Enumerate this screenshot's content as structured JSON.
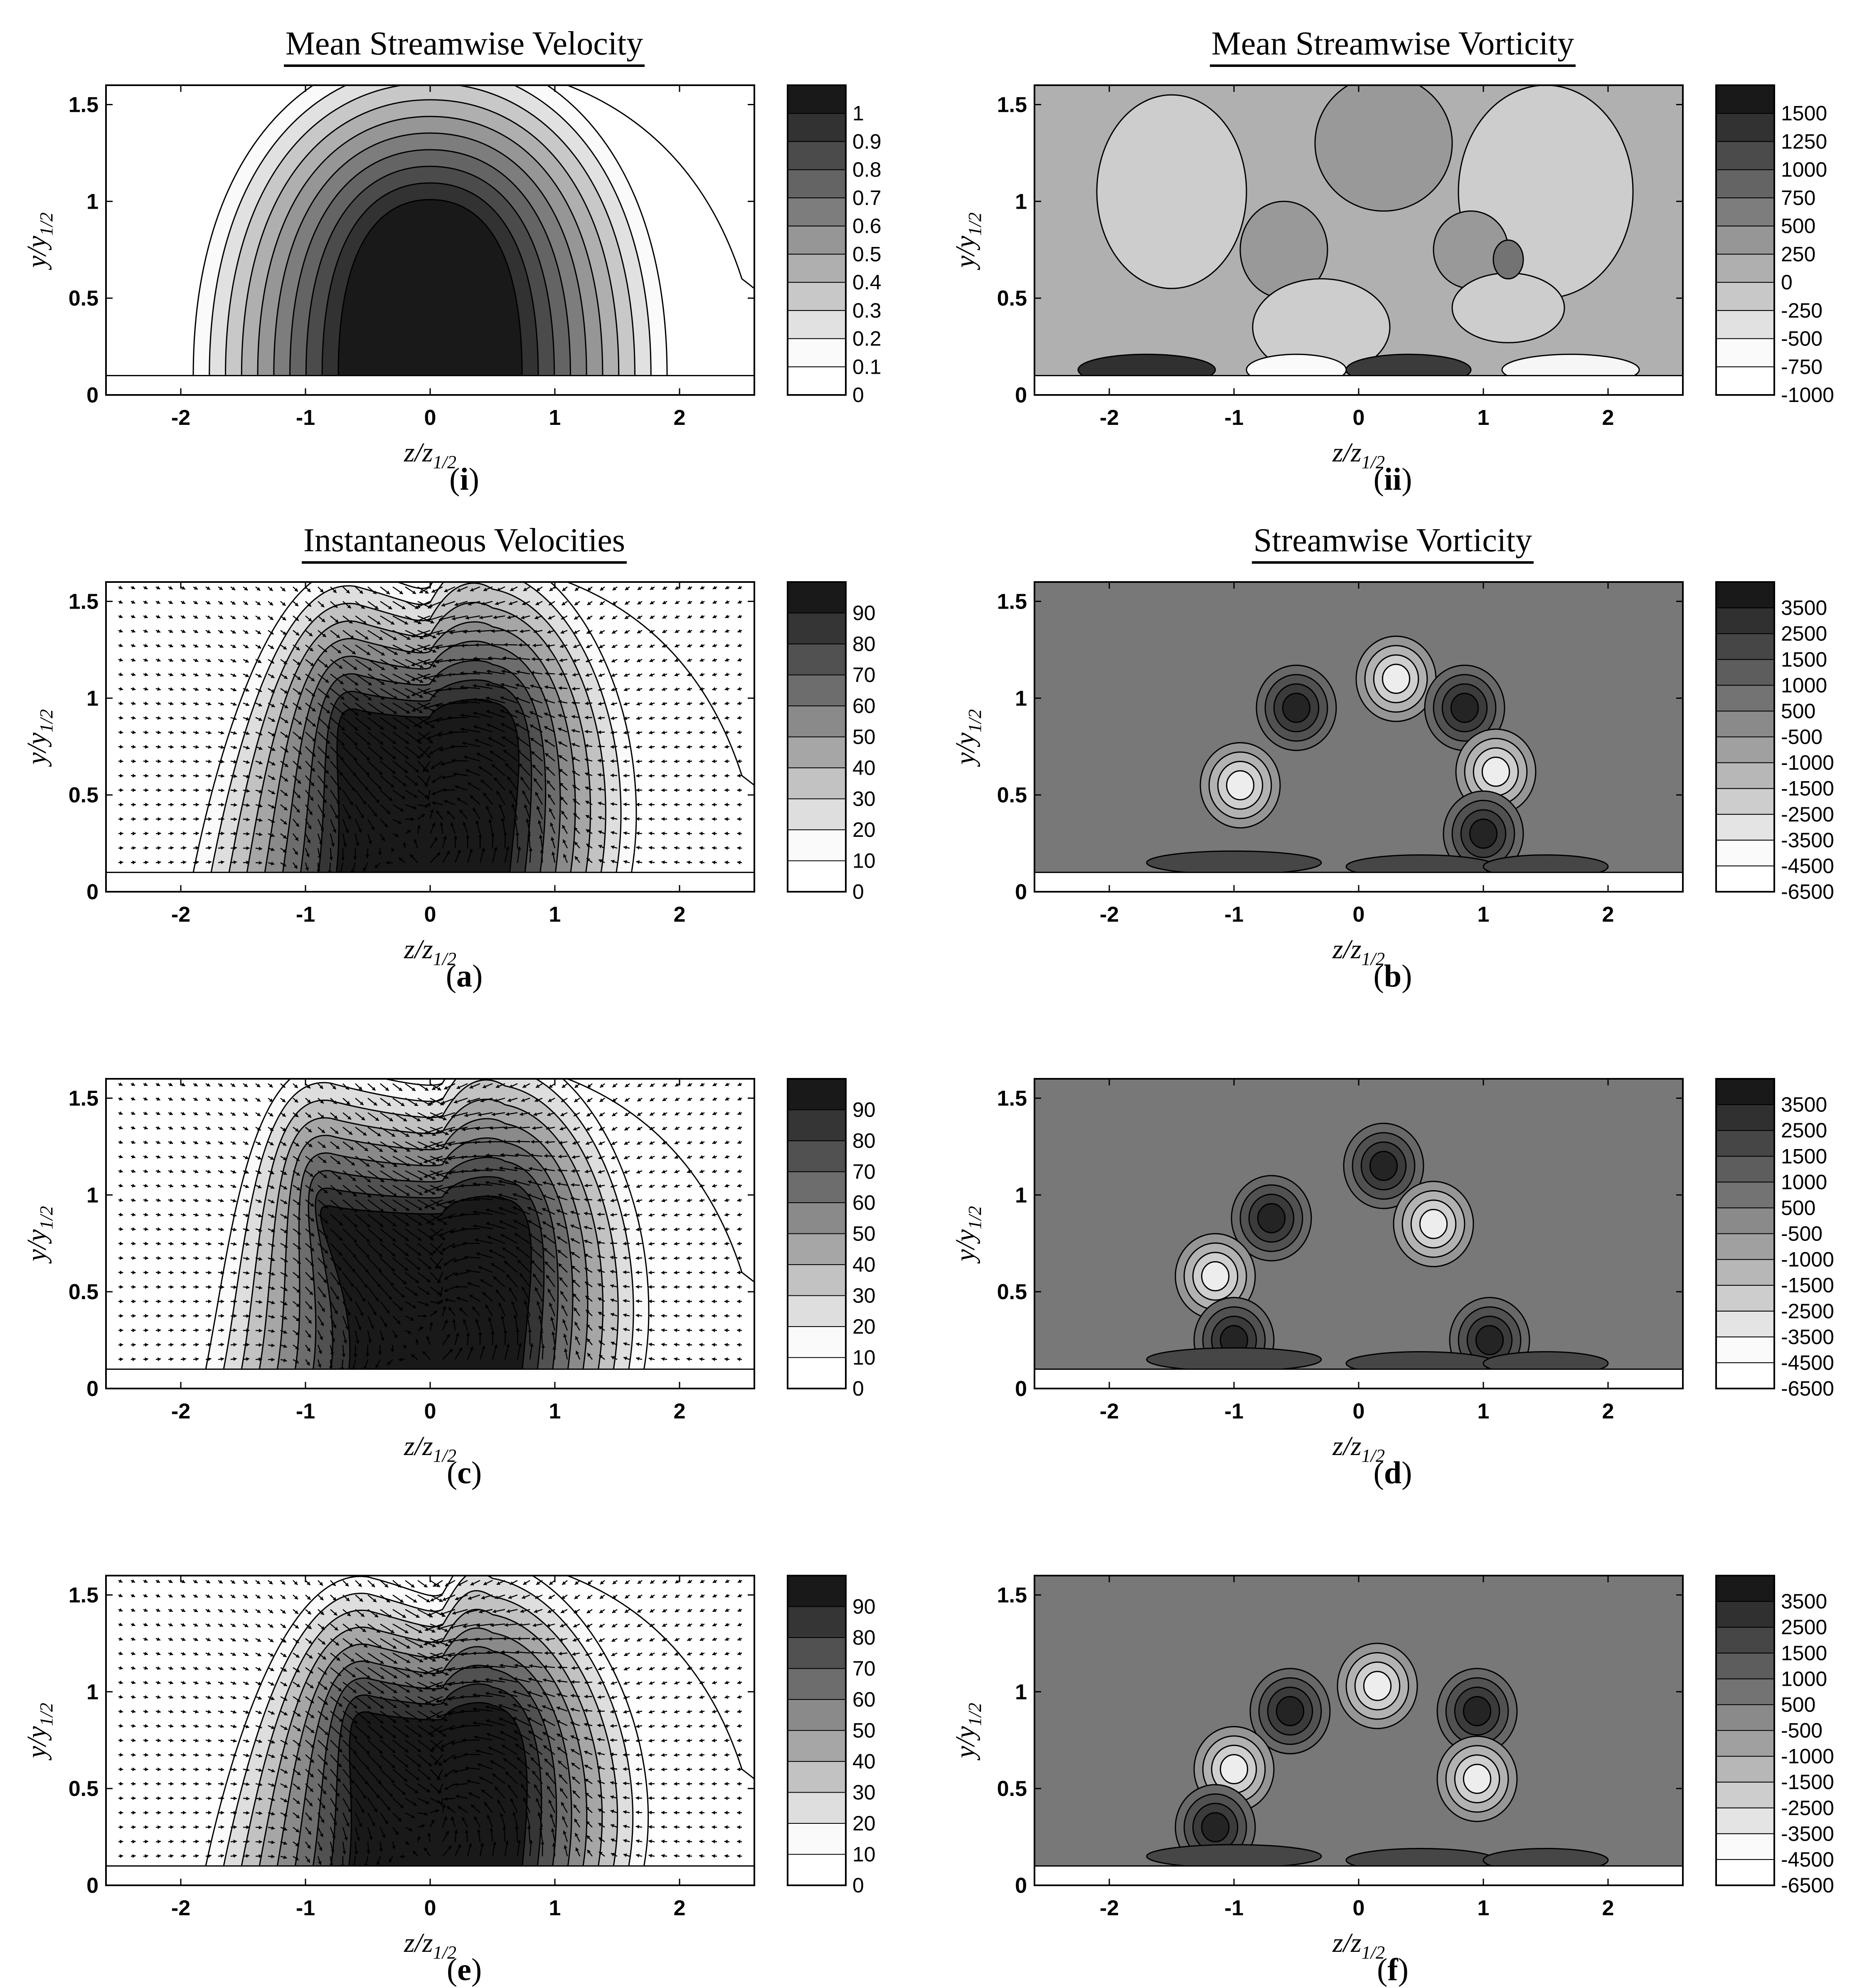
{
  "figure": {
    "panels": [
      {
        "id": "i",
        "kind": "mean-velocity",
        "title": "Mean Streamwise Velocity",
        "caption": "i"
      },
      {
        "id": "ii",
        "kind": "mean-vorticity",
        "title": "Mean Streamwise Vorticity",
        "caption": "ii"
      },
      {
        "id": "a",
        "kind": "inst-velocity",
        "title": "Instantaneous Velocities",
        "caption": "a"
      },
      {
        "id": "b",
        "kind": "inst-vorticity",
        "title": "Streamwise Vorticity",
        "caption": "b"
      },
      {
        "id": "c",
        "kind": "inst-velocity",
        "title": "",
        "caption": "c"
      },
      {
        "id": "d",
        "kind": "inst-vorticity",
        "title": "",
        "caption": "d"
      },
      {
        "id": "e",
        "kind": "inst-velocity",
        "title": "",
        "caption": "e"
      },
      {
        "id": "f",
        "kind": "inst-vorticity",
        "title": "",
        "caption": "f"
      }
    ]
  },
  "chart_data": [
    {
      "panel": "i",
      "type": "heatmap",
      "title": "Mean Streamwise Velocity",
      "xlabel": "z/z",
      "xlabel_sub": "1/2",
      "ylabel": "y/y",
      "ylabel_sub": "1/2",
      "xlim": [
        -2.6,
        2.6
      ],
      "ylim": [
        0,
        1.6
      ],
      "xticks": [
        "-2",
        "-1",
        "0",
        "1",
        "2"
      ],
      "yticks": [
        "0",
        "0.5",
        "1",
        "1.5"
      ],
      "colorbar_levels": [
        "0",
        "0.1",
        "0.2",
        "0.3",
        "0.4",
        "0.5",
        "0.6",
        "0.7",
        "0.8",
        "0.9",
        "1"
      ],
      "jet": {
        "center_z": 0,
        "center_y": 0.5,
        "peak": 1.0,
        "outer_extent_z": 1.9,
        "outer_extent_y": 1.35
      },
      "wall_y": 0.1
    },
    {
      "panel": "ii",
      "type": "heatmap",
      "title": "Mean Streamwise Vorticity",
      "xlabel": "z/z",
      "xlabel_sub": "1/2",
      "ylabel": "y/y",
      "ylabel_sub": "1/2",
      "xlim": [
        -2.6,
        2.6
      ],
      "ylim": [
        0,
        1.6
      ],
      "xticks": [
        "-2",
        "-1",
        "0",
        "1",
        "2"
      ],
      "yticks": [
        "0",
        "0.5",
        "1",
        "1.5"
      ],
      "colorbar_levels": [
        "-1000",
        "-750",
        "-500",
        "-250",
        "0",
        "250",
        "500",
        "750",
        "1000",
        "1250",
        "1500"
      ],
      "wall_y": 0.1
    },
    {
      "panel": "a",
      "type": "heatmap",
      "title": "Instantaneous Velocities",
      "xlabel": "z/z",
      "xlabel_sub": "1/2",
      "ylabel": "y/y",
      "ylabel_sub": "1/2",
      "xlim": [
        -2.6,
        2.6
      ],
      "ylim": [
        0,
        1.6
      ],
      "xticks": [
        "-2",
        "-1",
        "0",
        "1",
        "2"
      ],
      "yticks": [
        "0",
        "0.5",
        "1",
        "1.5"
      ],
      "colorbar_levels": [
        "0",
        "10",
        "20",
        "30",
        "40",
        "50",
        "60",
        "70",
        "80",
        "90"
      ],
      "jet": {
        "center_z": 0,
        "center_y": 0.45,
        "lobe_left_z": -0.6,
        "lobe_right_z": 0.5,
        "outer_extent_y": 1.35
      },
      "vectors": true,
      "wall_y": 0.1
    },
    {
      "panel": "b",
      "type": "heatmap",
      "title": "Streamwise Vorticity",
      "xlabel": "z/z",
      "xlabel_sub": "1/2",
      "ylabel": "y/y",
      "ylabel_sub": "1/2",
      "xlim": [
        -2.6,
        2.6
      ],
      "ylim": [
        0,
        1.6
      ],
      "xticks": [
        "-2",
        "-1",
        "0",
        "1",
        "2"
      ],
      "yticks": [
        "0",
        "0.5",
        "1",
        "1.5"
      ],
      "colorbar_levels": [
        "-6500",
        "-4500",
        "-3500",
        "-2500",
        "-1500",
        "-1000",
        "-500",
        "500",
        "1000",
        "1500",
        "2500",
        "3500"
      ],
      "vortices": [
        {
          "z": -0.5,
          "y": 0.95,
          "sign": 1
        },
        {
          "z": 0.3,
          "y": 1.1,
          "sign": -1
        },
        {
          "z": 0.85,
          "y": 0.95,
          "sign": 1
        },
        {
          "z": -0.95,
          "y": 0.55,
          "sign": -1
        },
        {
          "z": 1.1,
          "y": 0.62,
          "sign": -1
        },
        {
          "z": 1.0,
          "y": 0.3,
          "sign": 1
        }
      ],
      "wall_y": 0.1
    },
    {
      "panel": "c",
      "type": "heatmap",
      "title": "",
      "xlabel": "z/z",
      "xlabel_sub": "1/2",
      "ylabel": "y/y",
      "ylabel_sub": "1/2",
      "xlim": [
        -2.6,
        2.6
      ],
      "ylim": [
        0,
        1.6
      ],
      "xticks": [
        "-2",
        "-1",
        "0",
        "1",
        "2"
      ],
      "yticks": [
        "0",
        "0.5",
        "1",
        "1.5"
      ],
      "colorbar_levels": [
        "0",
        "10",
        "20",
        "30",
        "40",
        "50",
        "60",
        "70",
        "80",
        "90"
      ],
      "jet": {
        "center_z": 0.1,
        "center_y": 0.45,
        "lobe_left_z": -0.8,
        "lobe_right_z": 0.6,
        "outer_extent_y": 1.35
      },
      "vectors": true,
      "wall_y": 0.1
    },
    {
      "panel": "d",
      "type": "heatmap",
      "title": "",
      "xlabel": "z/z",
      "xlabel_sub": "1/2",
      "ylabel": "y/y",
      "ylabel_sub": "1/2",
      "xlim": [
        -2.6,
        2.6
      ],
      "ylim": [
        0,
        1.6
      ],
      "xticks": [
        "-2",
        "-1",
        "0",
        "1",
        "2"
      ],
      "yticks": [
        "0",
        "0.5",
        "1",
        "1.5"
      ],
      "colorbar_levels": [
        "-6500",
        "-4500",
        "-3500",
        "-2500",
        "-1500",
        "-1000",
        "-500",
        "500",
        "1000",
        "1500",
        "2500",
        "3500"
      ],
      "vortices": [
        {
          "z": -0.7,
          "y": 0.88,
          "sign": 1
        },
        {
          "z": 0.2,
          "y": 1.15,
          "sign": 1
        },
        {
          "z": 0.6,
          "y": 0.85,
          "sign": -1
        },
        {
          "z": -1.15,
          "y": 0.58,
          "sign": -1
        },
        {
          "z": -1.0,
          "y": 0.25,
          "sign": 1
        },
        {
          "z": 1.05,
          "y": 0.25,
          "sign": 1
        }
      ],
      "wall_y": 0.1
    },
    {
      "panel": "e",
      "type": "heatmap",
      "title": "",
      "xlabel": "z/z",
      "xlabel_sub": "1/2",
      "ylabel": "y/y",
      "ylabel_sub": "1/2",
      "xlim": [
        -2.6,
        2.6
      ],
      "ylim": [
        0,
        1.6
      ],
      "xticks": [
        "-2",
        "-1",
        "0",
        "1",
        "2"
      ],
      "yticks": [
        "0",
        "0.5",
        "1",
        "1.5"
      ],
      "colorbar_levels": [
        "0",
        "10",
        "20",
        "30",
        "40",
        "50",
        "60",
        "70",
        "80",
        "90"
      ],
      "jet": {
        "center_z": 0.1,
        "center_y": 0.42,
        "lobe_left_z": -0.5,
        "lobe_right_z": 0.5,
        "outer_extent_y": 1.3
      },
      "vectors": true,
      "wall_y": 0.1
    },
    {
      "panel": "f",
      "type": "heatmap",
      "title": "",
      "xlabel": "z/z",
      "xlabel_sub": "1/2",
      "ylabel": "y/y",
      "ylabel_sub": "1/2",
      "xlim": [
        -2.6,
        2.6
      ],
      "ylim": [
        0,
        1.6
      ],
      "xticks": [
        "-2",
        "-1",
        "0",
        "1",
        "2"
      ],
      "yticks": [
        "0",
        "0.5",
        "1",
        "1.5"
      ],
      "colorbar_levels": [
        "-6500",
        "-4500",
        "-3500",
        "-2500",
        "-1500",
        "-1000",
        "-500",
        "500",
        "1000",
        "1500",
        "2500",
        "3500"
      ],
      "vortices": [
        {
          "z": -0.55,
          "y": 0.9,
          "sign": 1
        },
        {
          "z": 0.15,
          "y": 1.03,
          "sign": -1
        },
        {
          "z": 0.95,
          "y": 0.9,
          "sign": 1
        },
        {
          "z": -1.0,
          "y": 0.6,
          "sign": -1
        },
        {
          "z": 0.95,
          "y": 0.55,
          "sign": -1
        },
        {
          "z": -1.15,
          "y": 0.3,
          "sign": 1
        }
      ],
      "wall_y": 0.1
    }
  ]
}
